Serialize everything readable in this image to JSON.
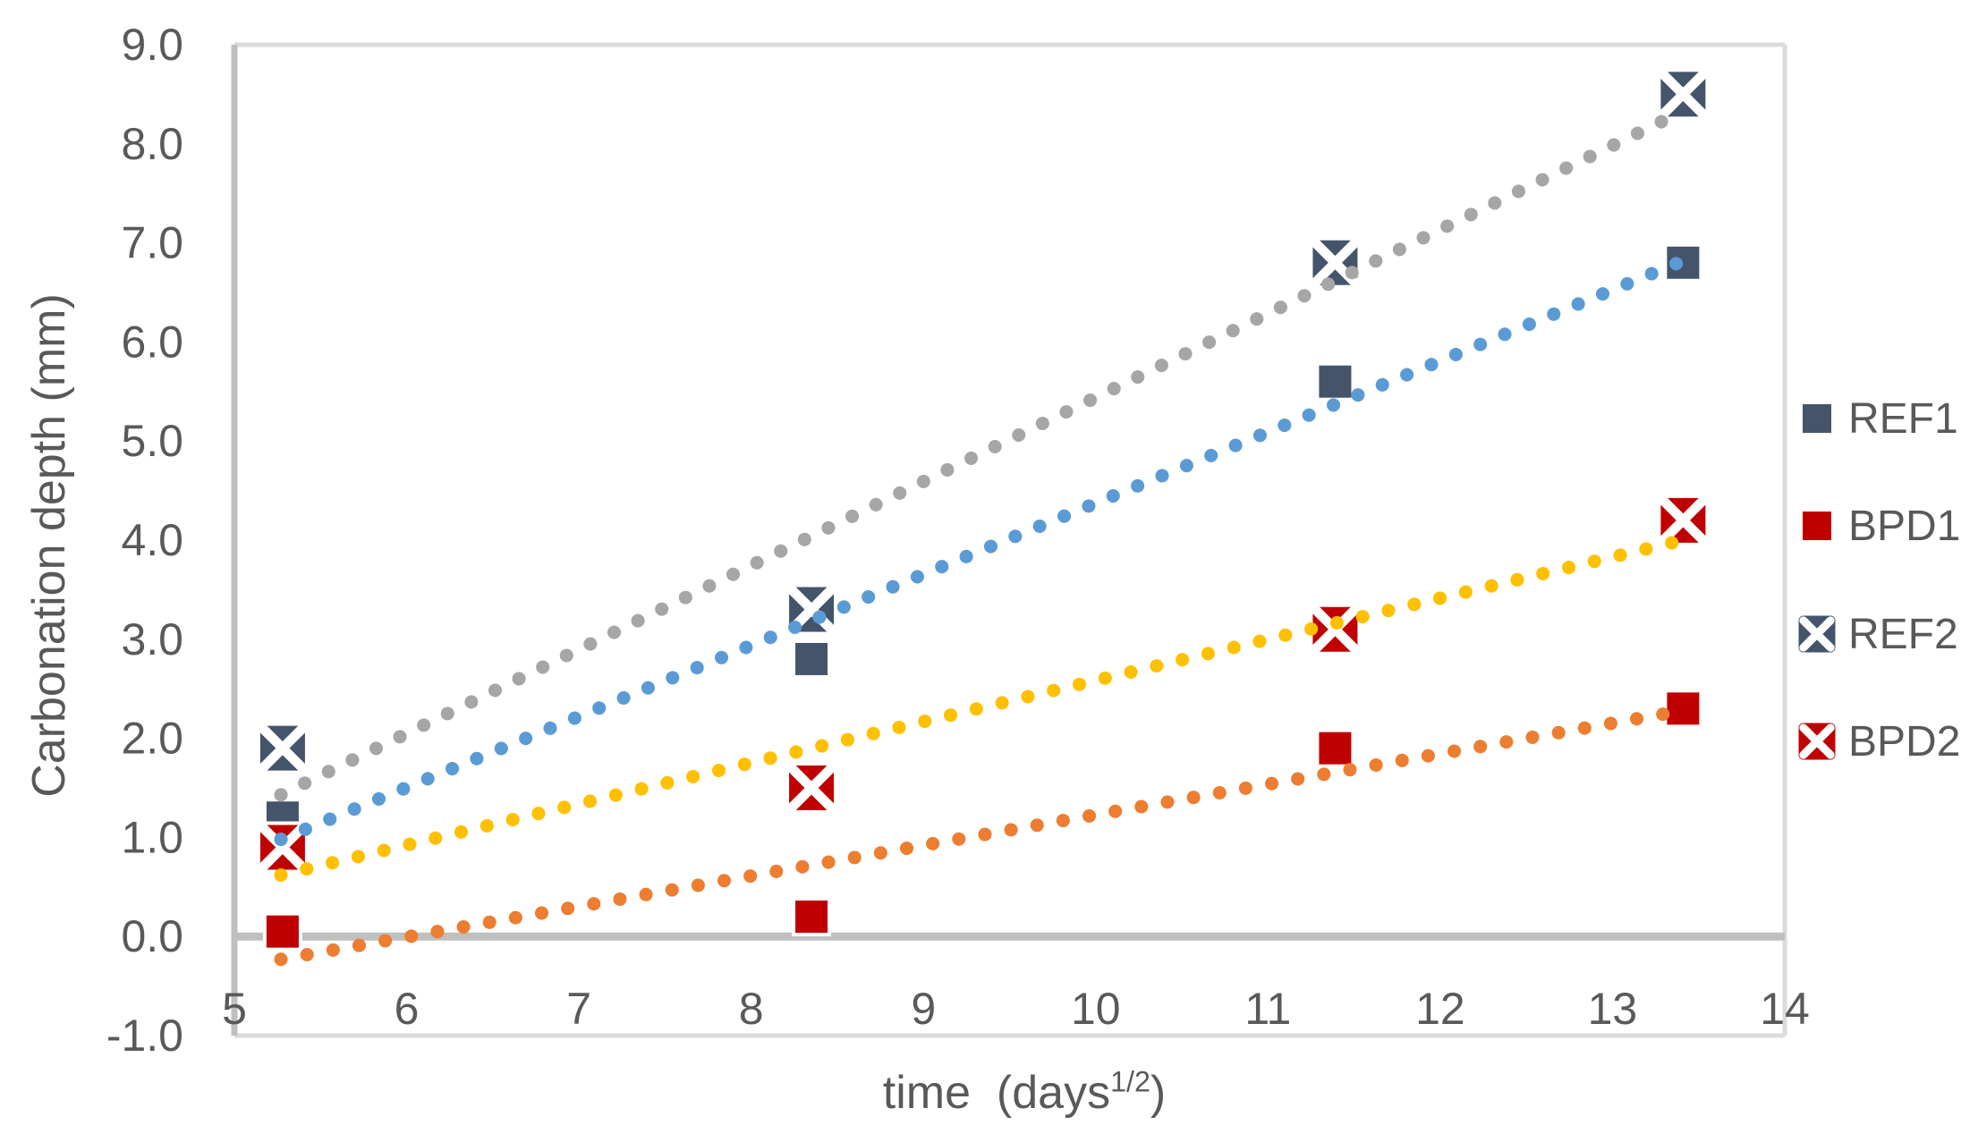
{
  "chart_data": {
    "type": "scatter",
    "title": "",
    "ylabel": "Carbonation depth (mm)",
    "xlabel_prefix": "time  (days",
    "xlabel_sup": "1/2",
    "xlabel_suffix": ")",
    "xlim": [
      5,
      14
    ],
    "ylim": [
      -1,
      9
    ],
    "grid": "none",
    "legend_position": "right",
    "x_ticks": [
      {
        "v": 5,
        "label": "5"
      },
      {
        "v": 6,
        "label": "6"
      },
      {
        "v": 7,
        "label": "7"
      },
      {
        "v": 8,
        "label": "8"
      },
      {
        "v": 9,
        "label": "9"
      },
      {
        "v": 10,
        "label": "10"
      },
      {
        "v": 11,
        "label": "11"
      },
      {
        "v": 12,
        "label": "12"
      },
      {
        "v": 13,
        "label": "13"
      },
      {
        "v": 14,
        "label": "14"
      }
    ],
    "y_ticks": [
      {
        "v": 9,
        "label": "9.0"
      },
      {
        "v": 8,
        "label": "8.0"
      },
      {
        "v": 7,
        "label": "7.0"
      },
      {
        "v": 6,
        "label": "6.0"
      },
      {
        "v": 5,
        "label": "5.0"
      },
      {
        "v": 4,
        "label": "4.0"
      },
      {
        "v": 3,
        "label": "3.0"
      },
      {
        "v": 2,
        "label": "2.0"
      },
      {
        "v": 1,
        "label": "1.0"
      },
      {
        "v": 0,
        "label": "0.0"
      },
      {
        "v": -1,
        "label": "-1.0"
      }
    ],
    "x": [
      5.28,
      8.35,
      11.39,
      13.41
    ],
    "series": [
      {
        "name": "REF1",
        "marker": "square",
        "color": "#44546A",
        "values": [
          1.2,
          2.8,
          5.6,
          6.8
        ],
        "trendline": {
          "color": "#5B9BD5",
          "x1": 5.27,
          "y1": 0.98,
          "x2": 13.41,
          "y2": 6.82
        }
      },
      {
        "name": "BPD1",
        "marker": "square",
        "color": "#C00000",
        "values": [
          0.05,
          0.2,
          1.9,
          2.3
        ],
        "trendline": {
          "color": "#ED7D31",
          "x1": 5.27,
          "y1": -0.23,
          "x2": 13.41,
          "y2": 2.28
        }
      },
      {
        "name": "REF2",
        "marker": "square-x",
        "color": "#44546A",
        "values": [
          1.9,
          3.3,
          6.8,
          8.5
        ],
        "trendline": {
          "color": "#A6A6A6",
          "x1": 5.27,
          "y1": 1.43,
          "x2": 13.41,
          "y2": 8.33
        }
      },
      {
        "name": "BPD2",
        "marker": "square-x",
        "color": "#C00000",
        "values": [
          0.9,
          1.5,
          3.1,
          4.2
        ],
        "trendline": {
          "color": "#FFC000",
          "x1": 5.27,
          "y1": 0.62,
          "x2": 13.41,
          "y2": 4.0
        }
      }
    ],
    "axis_colors": {
      "border": "#DBDBDB",
      "axis_line": "#BFBFBF",
      "zero_line": "#BFBFBF",
      "text": "#595959"
    }
  }
}
